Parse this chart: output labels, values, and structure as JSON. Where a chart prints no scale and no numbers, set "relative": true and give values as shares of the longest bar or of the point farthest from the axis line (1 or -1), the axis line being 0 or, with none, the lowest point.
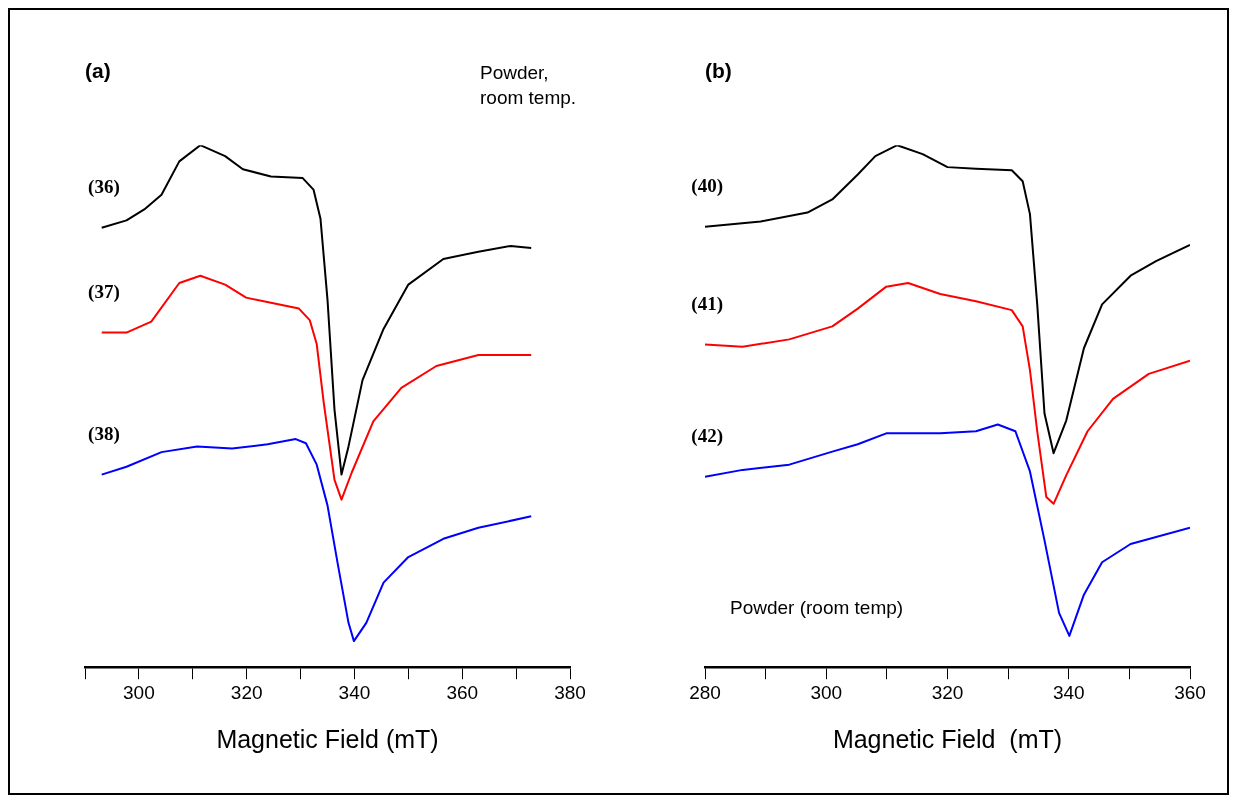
{
  "chart_data": [
    {
      "type": "line",
      "title": "(a)",
      "xlabel": "Magnetic Field (mT)",
      "annotations": [
        "Powder, room temp."
      ],
      "relative": true,
      "xlim": [
        290,
        380
      ],
      "xticks": [
        {
          "value": 290,
          "label": null
        },
        300,
        {
          "value": 310,
          "label": null
        },
        320,
        {
          "value": 330,
          "label": null
        },
        340,
        {
          "value": 350,
          "label": null
        },
        360,
        {
          "value": 370,
          "label": null
        },
        380
      ],
      "tick_labels": "x",
      "grid": false,
      "legend": false,
      "marker": "none",
      "series": [
        {
          "name": "(36)",
          "color": "#000000",
          "x": [
            293.1,
            297.7,
            301.0,
            304.2,
            307.5,
            311.4,
            316.0,
            319.3,
            324.5,
            330.4,
            332.4,
            333.7,
            335.0,
            336.3,
            337.6,
            338.9,
            341.5,
            345.4,
            350.0,
            356.5,
            363.0,
            369.0,
            372.8
          ],
          "values": [
            0.842,
            0.856,
            0.877,
            0.905,
            0.969,
            1.0,
            0.979,
            0.954,
            0.94,
            0.937,
            0.915,
            0.859,
            0.704,
            0.493,
            0.369,
            0.423,
            0.55,
            0.648,
            0.733,
            0.782,
            0.796,
            0.807,
            0.803
          ]
        },
        {
          "name": "(37)",
          "color": "#ff0000",
          "x": [
            293.1,
            297.7,
            302.3,
            307.5,
            311.4,
            316.0,
            319.9,
            324.5,
            329.7,
            331.7,
            333.0,
            334.3,
            336.3,
            337.6,
            339.5,
            343.5,
            348.7,
            355.2,
            363.0,
            372.8
          ],
          "values": [
            0.641,
            0.641,
            0.662,
            0.736,
            0.75,
            0.733,
            0.708,
            0.698,
            0.687,
            0.665,
            0.619,
            0.507,
            0.359,
            0.321,
            0.373,
            0.471,
            0.535,
            0.577,
            0.598,
            0.598
          ]
        },
        {
          "name": "(38)",
          "color": "#0000ff",
          "x": [
            293.1,
            297.7,
            304.2,
            310.8,
            317.3,
            323.9,
            329.1,
            331.0,
            333.0,
            335.0,
            336.9,
            338.9,
            339.9,
            342.2,
            345.4,
            350.0,
            356.5,
            363.0,
            372.8
          ],
          "values": [
            0.369,
            0.384,
            0.412,
            0.423,
            0.419,
            0.427,
            0.437,
            0.429,
            0.388,
            0.31,
            0.198,
            0.085,
            0.05,
            0.085,
            0.162,
            0.211,
            0.246,
            0.267,
            0.289
          ]
        }
      ]
    },
    {
      "type": "line",
      "title": "(b)",
      "xlabel": "Magnetic Field  (mT)",
      "annotations": [
        "Powder (room temp)"
      ],
      "relative": true,
      "xlim": [
        280,
        360
      ],
      "xticks": [
        280,
        {
          "value": 290,
          "label": null
        },
        300,
        {
          "value": 310,
          "label": null
        },
        320,
        {
          "value": 330,
          "label": null
        },
        340,
        {
          "value": 350,
          "label": null
        },
        360
      ],
      "tick_labels": "x",
      "grid": false,
      "legend": false,
      "marker": "none",
      "series": [
        {
          "name": "(40)",
          "color": "#000000",
          "x": [
            280,
            289.2,
            296.9,
            301.0,
            305.2,
            308.1,
            311.7,
            315.9,
            320.0,
            324.7,
            330.6,
            332.4,
            333.6,
            334.8,
            336.0,
            337.5,
            339.6,
            342.5,
            345.5,
            350.2,
            354.4,
            360.0
          ],
          "values": [
            0.844,
            0.854,
            0.871,
            0.896,
            0.944,
            0.979,
            1.0,
            0.983,
            0.958,
            0.955,
            0.952,
            0.931,
            0.868,
            0.695,
            0.486,
            0.41,
            0.473,
            0.611,
            0.695,
            0.75,
            0.778,
            0.809
          ]
        },
        {
          "name": "(41)",
          "color": "#ff0000",
          "x": [
            280,
            286.2,
            293.9,
            301.0,
            305.2,
            309.9,
            313.5,
            318.8,
            324.7,
            330.6,
            332.4,
            333.6,
            334.8,
            336.3,
            337.5,
            339.6,
            343.1,
            347.3,
            353.2,
            360.0
          ],
          "values": [
            0.618,
            0.614,
            0.628,
            0.653,
            0.687,
            0.729,
            0.736,
            0.715,
            0.701,
            0.684,
            0.653,
            0.569,
            0.452,
            0.326,
            0.313,
            0.368,
            0.452,
            0.514,
            0.562,
            0.587
          ]
        },
        {
          "name": "(42)",
          "color": "#0000ff",
          "x": [
            280,
            286.2,
            293.9,
            301.0,
            305.2,
            309.9,
            318.8,
            324.7,
            328.3,
            331.2,
            333.6,
            336.0,
            338.4,
            340.1,
            342.5,
            345.5,
            350.2,
            360.0
          ],
          "values": [
            0.365,
            0.378,
            0.388,
            0.413,
            0.427,
            0.448,
            0.448,
            0.452,
            0.465,
            0.452,
            0.375,
            0.243,
            0.104,
            0.06,
            0.139,
            0.201,
            0.236,
            0.267
          ]
        }
      ]
    }
  ]
}
